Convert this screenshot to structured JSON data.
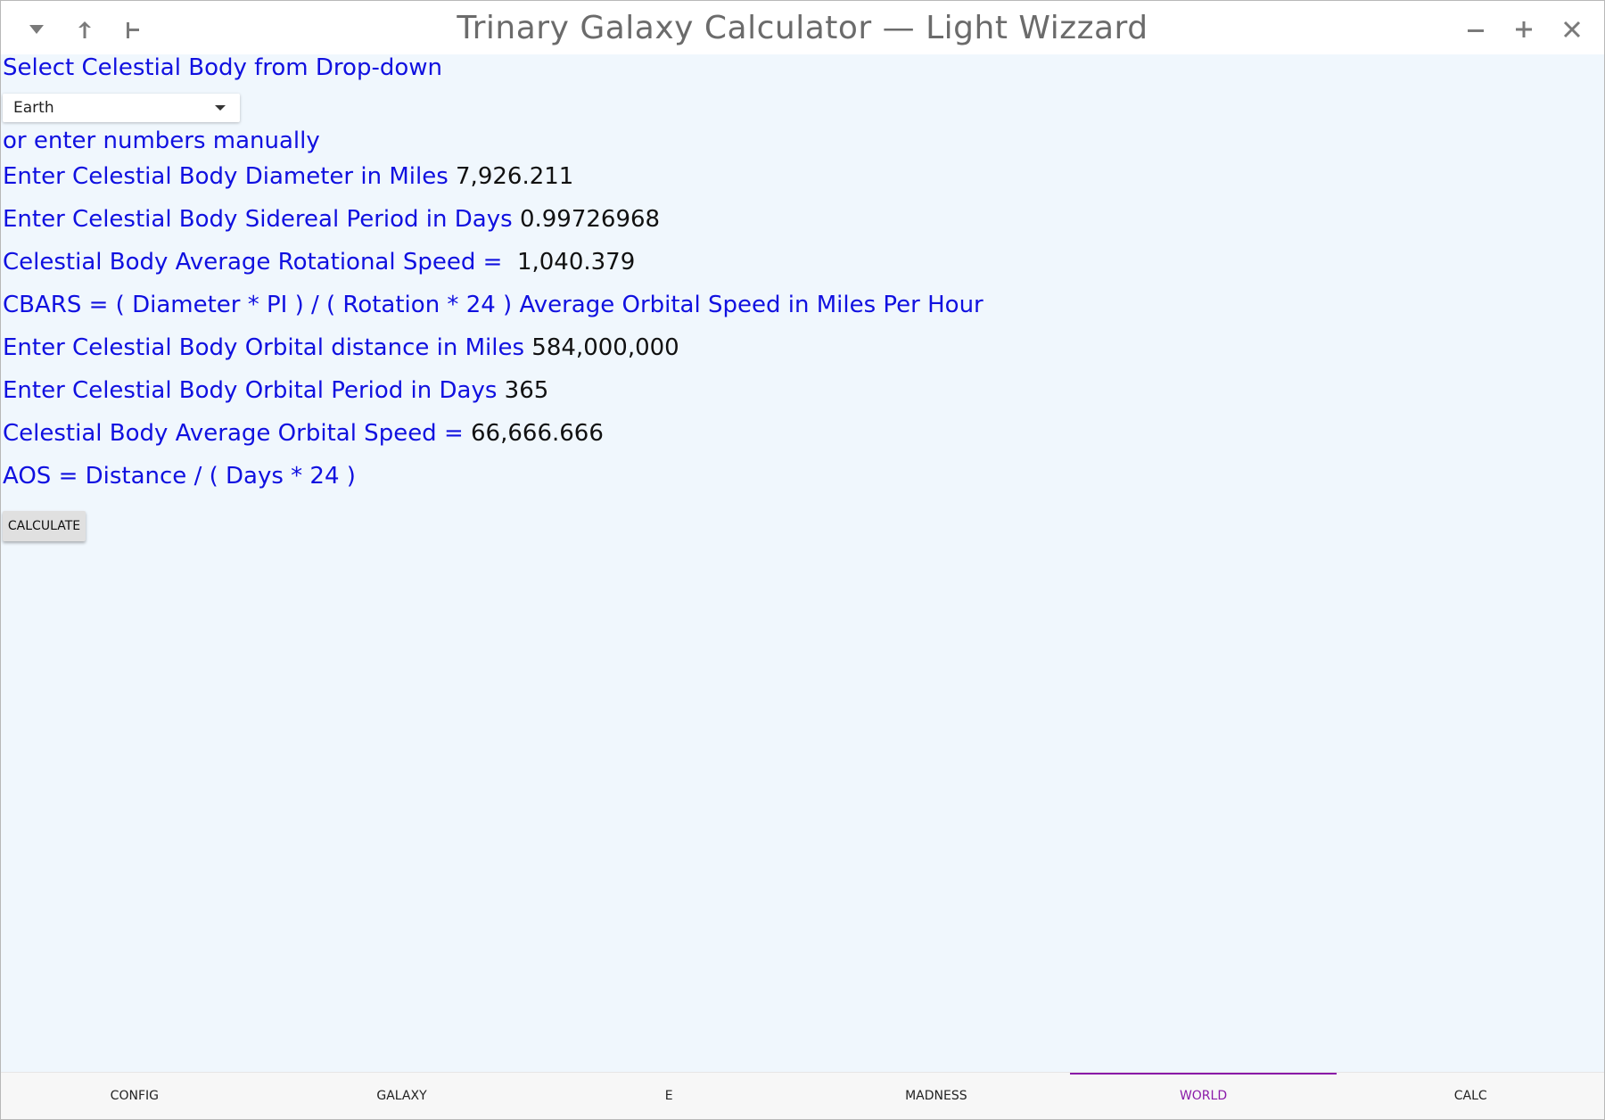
{
  "window": {
    "title": "Trinary Galaxy Calculator — Light Wizzard"
  },
  "form": {
    "select_label": "Select Celestial Body from Drop-down",
    "dropdown_value": "Earth",
    "manual_label": "or enter numbers manually",
    "diameter_label": "Enter Celestial Body Diameter in Miles",
    "diameter_value": "7,926.211",
    "sidereal_label": "Enter Celestial Body Sidereal Period in Days",
    "sidereal_value": "0.99726968",
    "rot_speed_label": "Celestial Body Average Rotational Speed = ",
    "rot_speed_value": "1,040.379",
    "cbars_formula": "CBARS = ( Diameter * PI ) / ( Rotation * 24 ) Average Orbital Speed in Miles Per Hour",
    "orbital_distance_label": "Enter Celestial Body Orbital distance in Miles",
    "orbital_distance_value": "584,000,000",
    "orbital_period_label": "Enter Celestial Body Orbital Period in Days",
    "orbital_period_value": "365",
    "orbital_speed_label": "Celestial Body Average Orbital Speed =",
    "orbital_speed_value": "66,666.666",
    "aos_formula": "AOS = Distance / ( Days * 24 )",
    "calculate_label": "CALCULATE"
  },
  "tabs": [
    {
      "label": "CONFIG"
    },
    {
      "label": "GALAXY"
    },
    {
      "label": "E"
    },
    {
      "label": "MADNESS"
    },
    {
      "label": "WORLD",
      "active": true
    },
    {
      "label": "CALC"
    }
  ],
  "colors": {
    "label_blue": "#1010e0",
    "active_tab": "#8a1aa8",
    "background": "#f0f7fd"
  },
  "icons": {
    "titlebar_left": [
      "chevron-down-icon",
      "arrow-up-icon",
      "pin-icon"
    ],
    "titlebar_right": [
      "minimize-icon",
      "maximize-icon",
      "close-icon"
    ]
  }
}
